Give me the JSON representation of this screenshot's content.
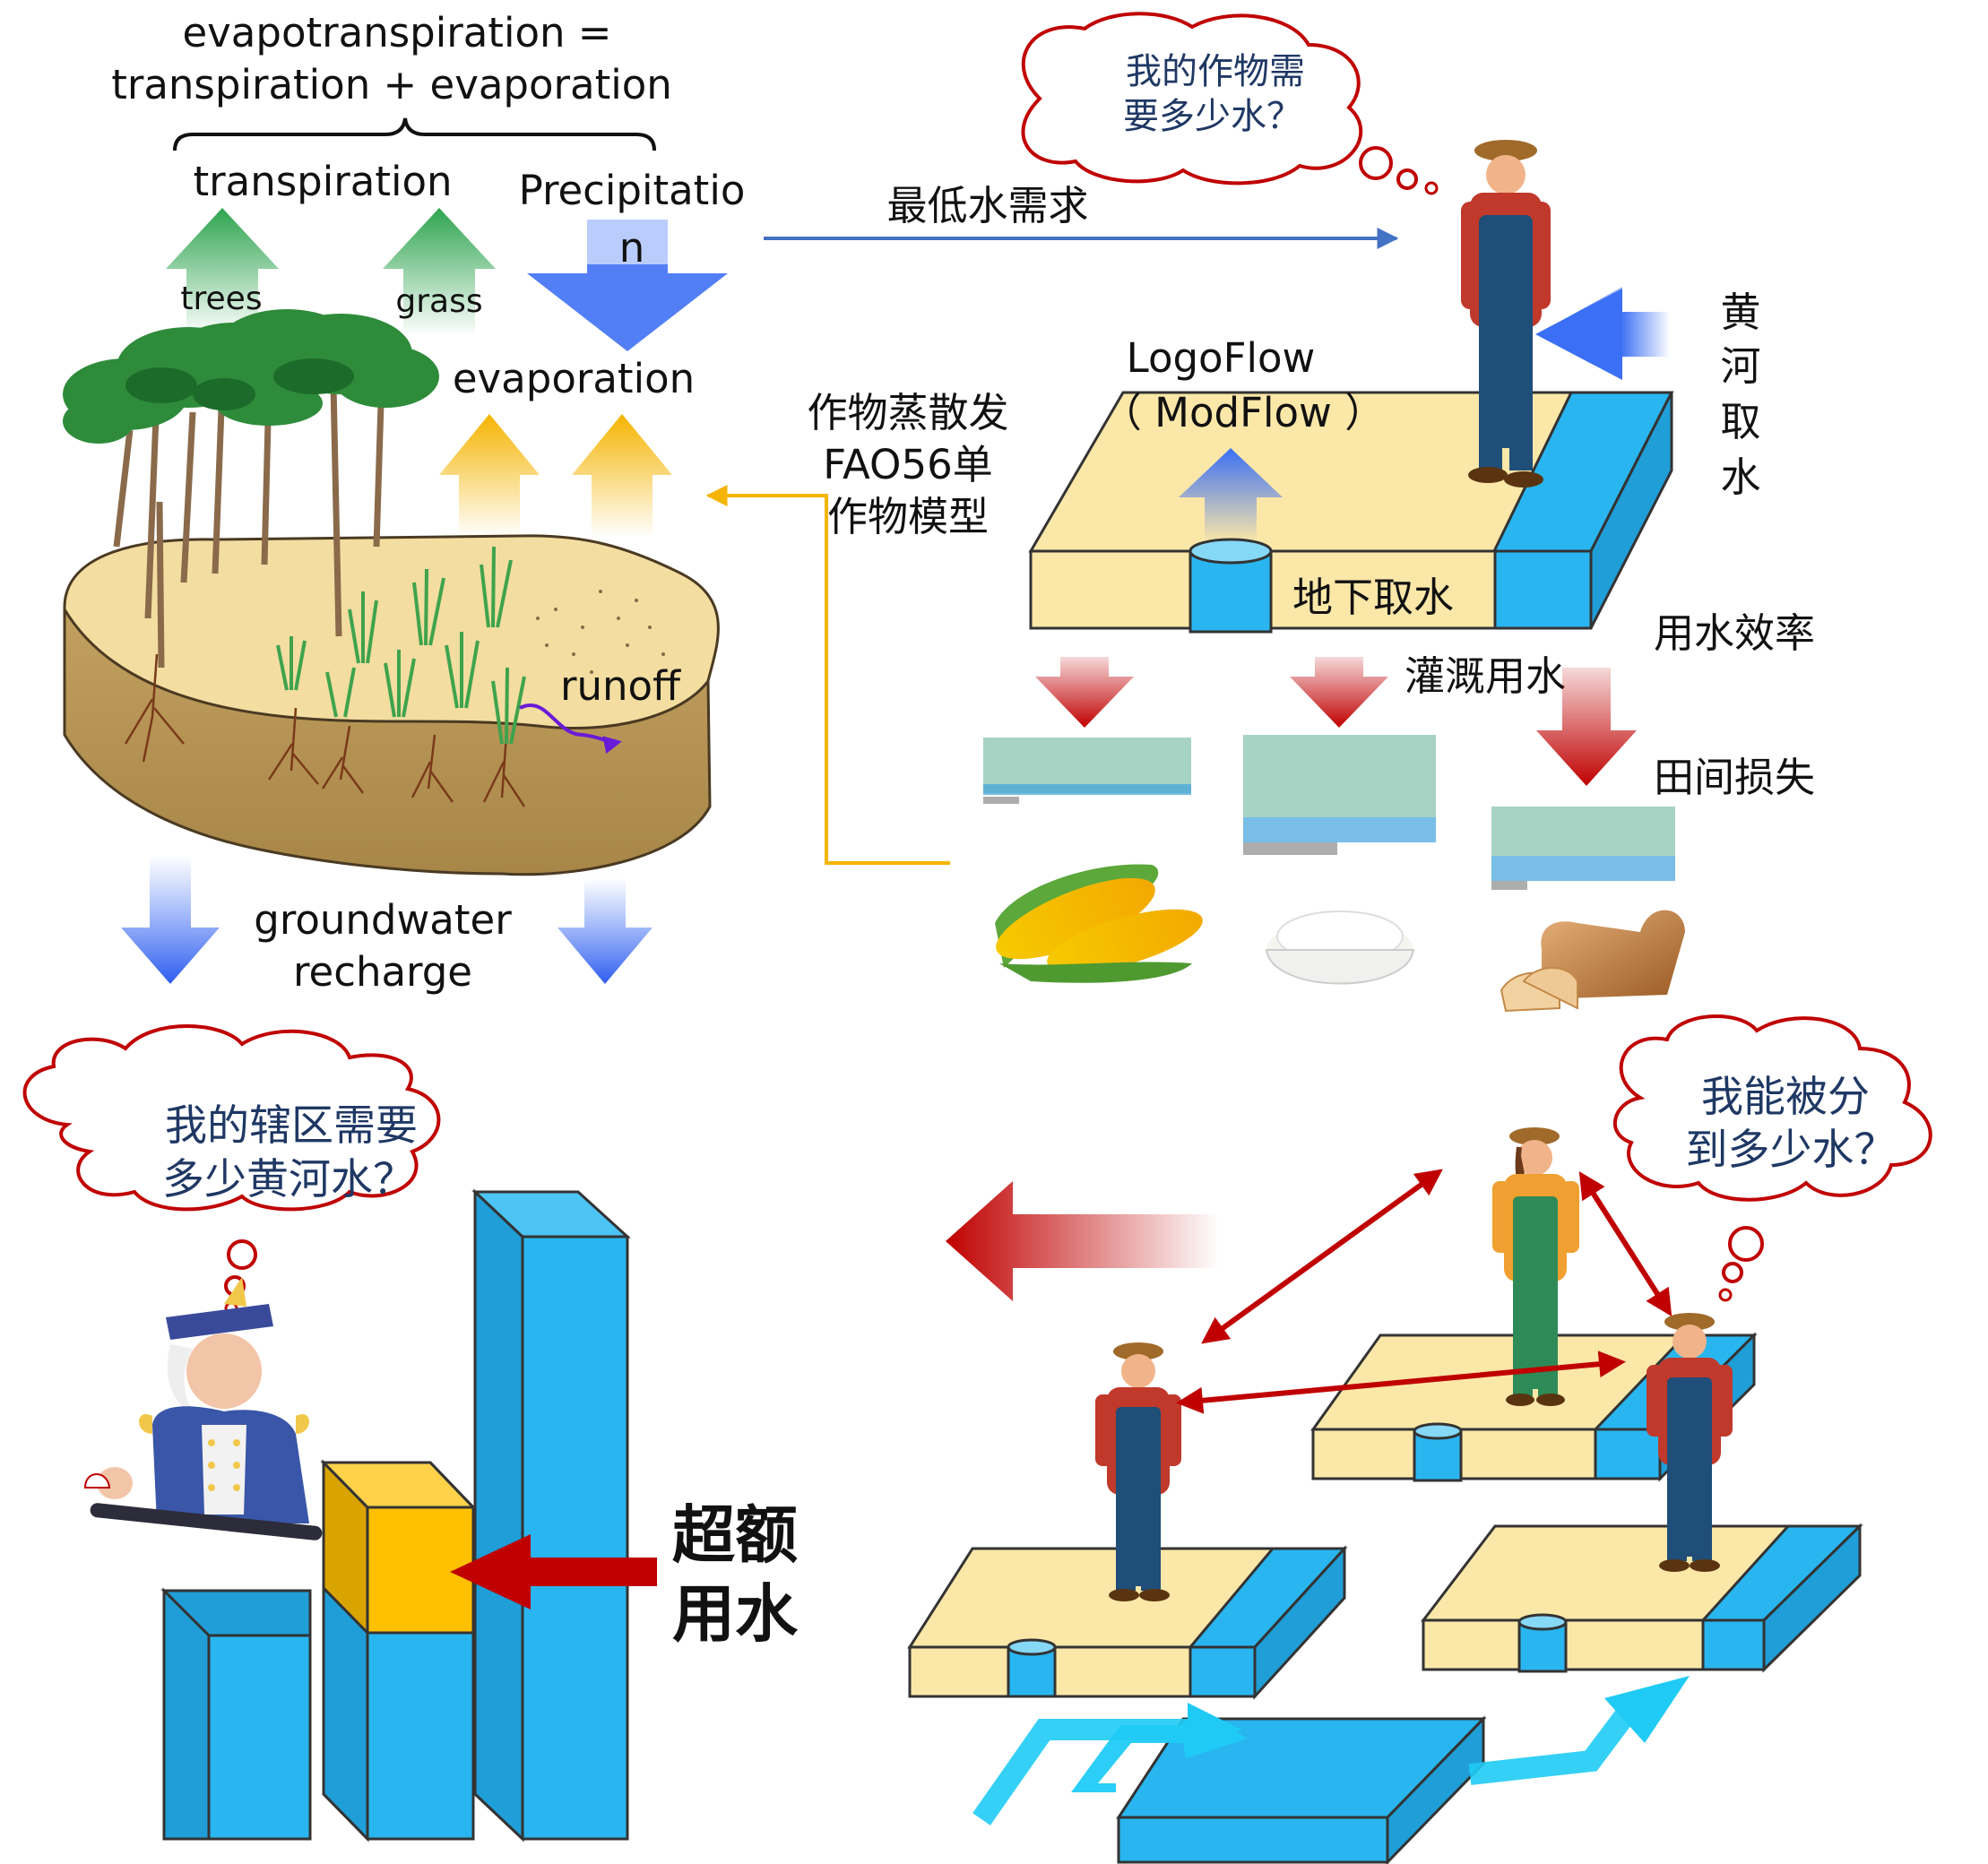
{
  "et_panel": {
    "equation_line1": "evapotranspiration =",
    "equation_line2": "transpiration + evaporation",
    "transpiration": "transpiration",
    "trees": "trees",
    "grass": "grass",
    "precipitation_line1": "Precipitatio",
    "precipitation_line2": "n",
    "evaporation": "evaporation",
    "runoff": "runoff",
    "recharge_line1": "groundwater",
    "recharge_line2": "recharge"
  },
  "farm_panel": {
    "thought_line1": "我的作物需",
    "thought_line2": "要多少水？",
    "min_demand": "最低水需求",
    "yellow_river_chars": [
      "黄",
      "河",
      "取",
      "水"
    ],
    "model_line1": "LogoFlow",
    "model_line2": "（ ModFlow ）",
    "crop_model_line1": "作物蒸散发",
    "crop_model_line2": "FAO56单",
    "crop_model_line3": "作物模型",
    "groundwater_withdrawal": "地下取水",
    "water_efficiency": "用水效率",
    "irrigation": "灌溉用水",
    "field_loss": "田间损失"
  },
  "official_panel": {
    "thought_line1": "我的辖区需要",
    "thought_line2": "多少黄河水？",
    "over_use_line1": "超额",
    "over_use_line2": "用水"
  },
  "allocation_panel": {
    "thought_line1": "我能被分",
    "thought_line2": "到多少水？"
  },
  "colors": {
    "water_blue": "#29b6f0",
    "soil_tan": "#fbe7a8",
    "arrow_red": "#c00000",
    "arrow_blue": "#4472c4",
    "arrow_orange": "#f5b400",
    "tree_green": "#2e8b3a",
    "cloud_red": "#c00000",
    "text_navy": "#1f3864"
  }
}
